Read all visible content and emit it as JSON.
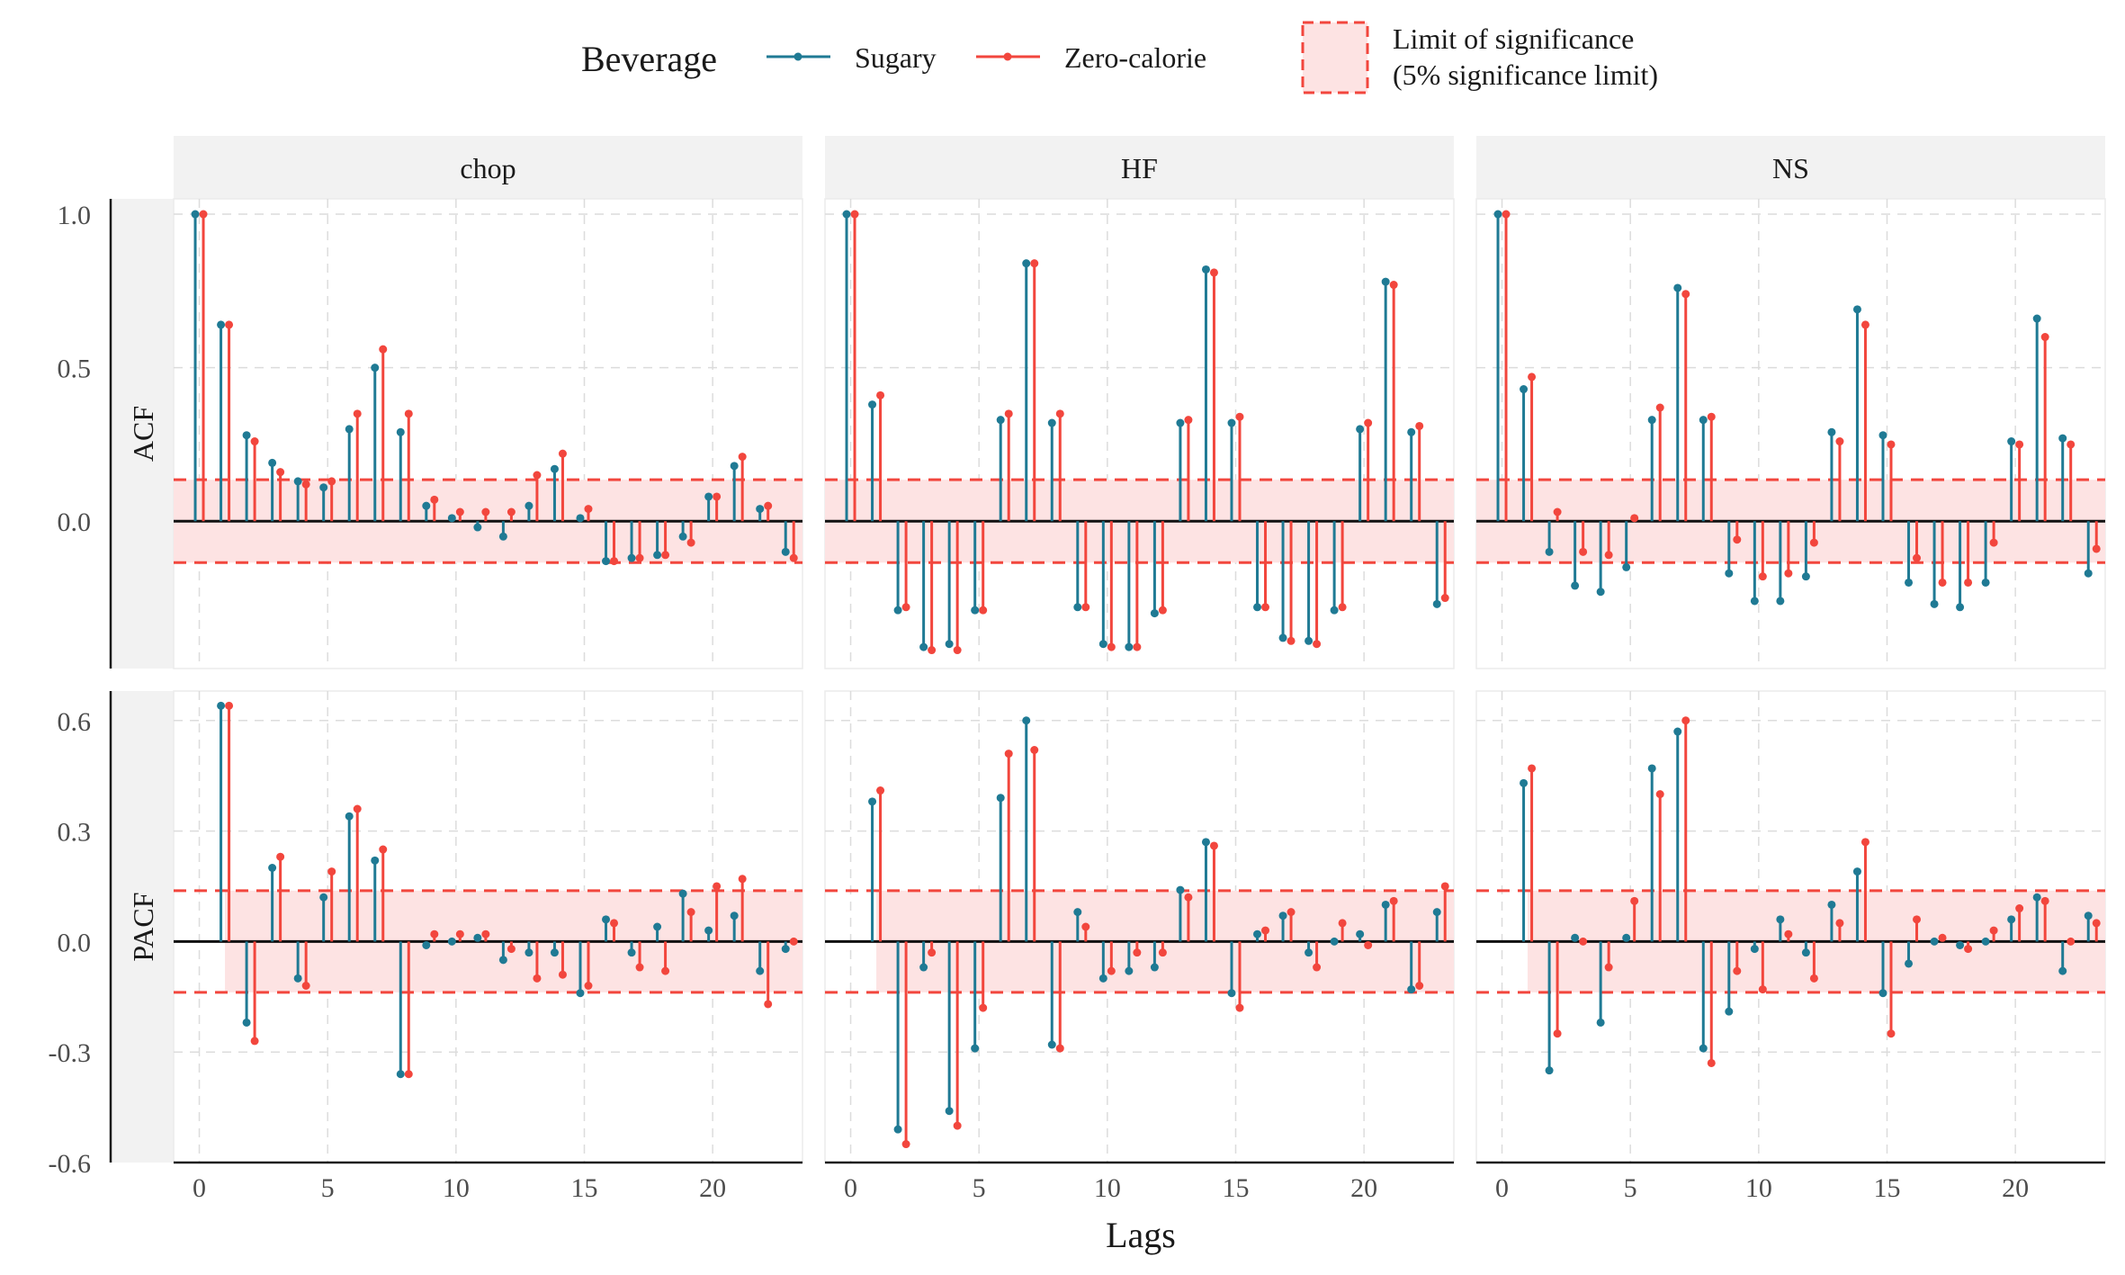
{
  "legend": {
    "title": "Beverage",
    "items": [
      {
        "label": "Sugary",
        "color": "#1f7a94"
      },
      {
        "label": "Zero-calorie",
        "color": "#f2463d"
      }
    ],
    "band_label_line1": "Limit of significance",
    "band_label_line2": "(5% significance limit)"
  },
  "axis": {
    "xlabel": "Lags",
    "x_ticks": [
      0,
      5,
      10,
      15,
      20
    ]
  },
  "colors": {
    "sugary": "#1f7a94",
    "zero": "#f2463d",
    "band_fill": "#fde3e3",
    "band_line": "#f2463d",
    "strip": "#f2f2f2"
  },
  "chart_data": {
    "type": "lollipop",
    "facets": [
      "chop",
      "HF",
      "NS"
    ],
    "rows": [
      "ACF",
      "PACF"
    ],
    "xlim": [
      -1,
      23.5
    ],
    "x_ticks": [
      0,
      5,
      10,
      15,
      20
    ],
    "row_specs": {
      "ACF": {
        "ylim": [
          -0.48,
          1.05
        ],
        "ticks": [
          0.0,
          0.5,
          1.0
        ],
        "tick_labels": [
          "0.0",
          "0.5",
          "1.0"
        ],
        "sig": 0.135
      },
      "PACF": {
        "ylim": [
          -0.6,
          0.68
        ],
        "ticks": [
          -0.6,
          -0.3,
          0.0,
          0.3,
          0.6
        ],
        "tick_labels": [
          "-0.6",
          "-0.3",
          "0.0",
          "0.3",
          "0.6"
        ],
        "sig": 0.138
      }
    },
    "series_names": [
      "Sugary",
      "Zero-calorie"
    ],
    "lags": [
      0,
      1,
      2,
      3,
      4,
      5,
      6,
      7,
      8,
      9,
      10,
      11,
      12,
      13,
      14,
      15,
      16,
      17,
      18,
      19,
      20,
      21,
      22,
      23
    ],
    "ACF": {
      "chop": {
        "Sugary": [
          1.0,
          0.64,
          0.28,
          0.19,
          0.13,
          0.11,
          0.3,
          0.5,
          0.29,
          0.05,
          0.01,
          -0.02,
          -0.05,
          0.05,
          0.17,
          0.01,
          -0.13,
          -0.12,
          -0.11,
          -0.05,
          0.08,
          0.18,
          0.04,
          -0.1
        ],
        "Zero-calorie": [
          1.0,
          0.64,
          0.26,
          0.16,
          0.12,
          0.13,
          0.35,
          0.56,
          0.35,
          0.07,
          0.03,
          0.03,
          0.03,
          0.15,
          0.22,
          0.04,
          -0.13,
          -0.12,
          -0.11,
          -0.07,
          0.08,
          0.21,
          0.05,
          -0.12
        ]
      },
      "HF": {
        "Sugary": [
          1.0,
          0.38,
          -0.29,
          -0.41,
          -0.4,
          -0.29,
          0.33,
          0.84,
          0.32,
          -0.28,
          -0.4,
          -0.41,
          -0.3,
          0.32,
          0.82,
          0.32,
          -0.28,
          -0.38,
          -0.39,
          -0.29,
          0.3,
          0.78,
          0.29,
          -0.27
        ],
        "Zero-calorie": [
          1.0,
          0.41,
          -0.28,
          -0.42,
          -0.42,
          -0.29,
          0.35,
          0.84,
          0.35,
          -0.28,
          -0.41,
          -0.41,
          -0.29,
          0.33,
          0.81,
          0.34,
          -0.28,
          -0.39,
          -0.4,
          -0.28,
          0.32,
          0.77,
          0.31,
          -0.25
        ]
      },
      "NS": {
        "Sugary": [
          1.0,
          0.43,
          -0.1,
          -0.21,
          -0.23,
          -0.15,
          0.33,
          0.76,
          0.33,
          -0.17,
          -0.26,
          -0.26,
          -0.18,
          0.29,
          0.69,
          0.28,
          -0.2,
          -0.27,
          -0.28,
          -0.2,
          0.26,
          0.66,
          0.27,
          -0.17
        ],
        "Zero-calorie": [
          1.0,
          0.47,
          0.03,
          -0.1,
          -0.11,
          0.01,
          0.37,
          0.74,
          0.34,
          -0.06,
          -0.18,
          -0.17,
          -0.07,
          0.26,
          0.64,
          0.25,
          -0.12,
          -0.2,
          -0.2,
          -0.07,
          0.25,
          0.6,
          0.25,
          -0.09
        ]
      }
    },
    "PACF": {
      "chop": {
        "Sugary": [
          null,
          0.64,
          -0.22,
          0.2,
          -0.1,
          0.12,
          0.34,
          0.22,
          -0.36,
          -0.01,
          0.0,
          0.01,
          -0.05,
          -0.03,
          -0.03,
          -0.14,
          0.06,
          -0.03,
          0.04,
          0.13,
          0.03,
          0.07,
          -0.08,
          -0.02
        ],
        "Zero-calorie": [
          null,
          0.64,
          -0.27,
          0.23,
          -0.12,
          0.19,
          0.36,
          0.25,
          -0.36,
          0.02,
          0.02,
          0.02,
          -0.02,
          -0.1,
          -0.09,
          -0.12,
          0.05,
          -0.07,
          -0.08,
          0.08,
          0.15,
          0.17,
          -0.17,
          0.0
        ]
      },
      "HF": {
        "Sugary": [
          null,
          0.38,
          -0.51,
          -0.07,
          -0.46,
          -0.29,
          0.39,
          0.6,
          -0.28,
          0.08,
          -0.1,
          -0.08,
          -0.07,
          0.14,
          0.27,
          -0.14,
          0.02,
          0.07,
          -0.03,
          0.0,
          0.02,
          0.1,
          -0.13,
          0.08
        ],
        "Zero-calorie": [
          null,
          0.41,
          -0.55,
          -0.03,
          -0.5,
          -0.18,
          0.51,
          0.52,
          -0.29,
          0.04,
          -0.08,
          -0.03,
          -0.03,
          0.12,
          0.26,
          -0.18,
          0.03,
          0.08,
          -0.07,
          0.05,
          -0.01,
          0.11,
          -0.12,
          0.15
        ]
      },
      "NS": {
        "Sugary": [
          null,
          0.43,
          -0.35,
          0.01,
          -0.22,
          0.01,
          0.47,
          0.57,
          -0.29,
          -0.19,
          -0.02,
          0.06,
          -0.03,
          0.1,
          0.19,
          -0.14,
          -0.06,
          0.0,
          -0.01,
          0.0,
          0.06,
          0.12,
          -0.08,
          0.07
        ],
        "Zero-calorie": [
          null,
          0.47,
          -0.25,
          0.0,
          -0.07,
          0.11,
          0.4,
          0.6,
          -0.33,
          -0.08,
          -0.13,
          0.02,
          -0.1,
          0.05,
          0.27,
          -0.25,
          0.06,
          0.01,
          -0.02,
          0.03,
          0.09,
          0.11,
          0.0,
          0.05
        ]
      }
    }
  }
}
